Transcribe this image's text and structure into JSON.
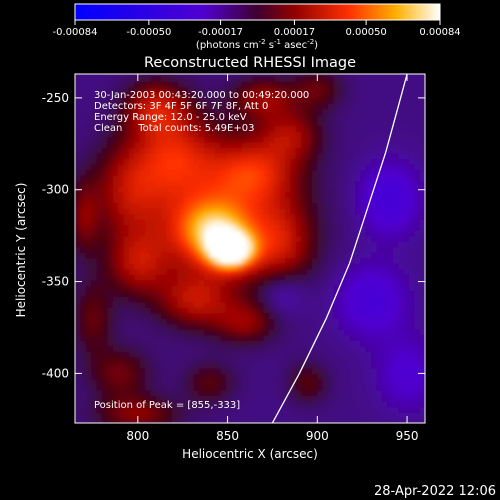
{
  "chart_data": {
    "type": "heatmap",
    "title": "Reconstructed RHESSI Image",
    "xlabel": "Heliocentric X (arcsec)",
    "ylabel": "Heliocentric Y (arcsec)",
    "xlim": [
      765,
      960
    ],
    "ylim": [
      -427,
      -237
    ],
    "x_ticks": [
      "800",
      "850",
      "900",
      "950"
    ],
    "x_tick_values": [
      800,
      850,
      900,
      950
    ],
    "y_ticks": [
      "-250",
      "-300",
      "-350",
      "-400"
    ],
    "y_tick_values": [
      -250,
      -300,
      -350,
      -400
    ],
    "colorbar": {
      "ticks": [
        "-0.00084",
        "-0.00050",
        "-0.00017",
        "0.00017",
        "0.00050",
        "0.00084"
      ],
      "tick_values": [
        -0.00084,
        -0.0005,
        -0.00017,
        0.00017,
        0.0005,
        0.00084
      ],
      "label": "(photons cm-2 s-1 asec-2)",
      "range": [
        -0.00084,
        0.00084
      ]
    },
    "annotations": {
      "line1": "30-Jan-2003 00:43:20.000 to 00:49:20.000",
      "line2": "Detectors: 3F 4F 5F 6F 7F 8F, Att 0",
      "line3": "Energy Range: 12.0 - 25.0 keV",
      "line4": "Clean     Total counts: 5.49E+03",
      "peak": "Position of Peak = [855,-333]"
    },
    "peak": [
      855,
      -333
    ],
    "limb_curve": [
      [
        875,
        -427
      ],
      [
        890,
        -400
      ],
      [
        905,
        -370
      ],
      [
        918,
        -340
      ],
      [
        928,
        -310
      ],
      [
        938,
        -280
      ],
      [
        945,
        -255
      ],
      [
        950,
        -237
      ]
    ],
    "blobs": [
      {
        "x": 852,
        "y": -333,
        "sx": 9,
        "sy": 7,
        "v": 0.00084
      },
      {
        "x": 842,
        "y": -322,
        "sx": 14,
        "sy": 11,
        "v": 0.0005
      },
      {
        "x": 845,
        "y": -315,
        "sx": 30,
        "sy": 28,
        "v": 0.0004
      },
      {
        "x": 820,
        "y": -280,
        "sx": 16,
        "sy": 16,
        "v": 0.00035
      },
      {
        "x": 795,
        "y": -300,
        "sx": 14,
        "sy": 18,
        "v": 0.0003
      },
      {
        "x": 810,
        "y": -255,
        "sx": 12,
        "sy": 10,
        "v": 0.00035
      },
      {
        "x": 865,
        "y": -290,
        "sx": 16,
        "sy": 12,
        "v": 0.00033
      },
      {
        "x": 885,
        "y": -270,
        "sx": 12,
        "sy": 10,
        "v": 0.00028
      },
      {
        "x": 880,
        "y": -330,
        "sx": 12,
        "sy": 16,
        "v": 0.00028
      },
      {
        "x": 800,
        "y": -340,
        "sx": 12,
        "sy": 12,
        "v": 0.0003
      },
      {
        "x": 832,
        "y": -360,
        "sx": 14,
        "sy": 10,
        "v": 0.0003
      },
      {
        "x": 860,
        "y": -372,
        "sx": 12,
        "sy": 8,
        "v": 0.00025
      },
      {
        "x": 790,
        "y": -400,
        "sx": 12,
        "sy": 10,
        "v": 0.00022
      },
      {
        "x": 800,
        "y": -422,
        "sx": 16,
        "sy": 7,
        "v": 0.00026
      },
      {
        "x": 775,
        "y": -370,
        "sx": 8,
        "sy": 14,
        "v": 0.0002
      },
      {
        "x": 770,
        "y": -315,
        "sx": 6,
        "sy": 14,
        "v": 0.00022
      },
      {
        "x": 840,
        "y": -405,
        "sx": 10,
        "sy": 8,
        "v": 0.00018
      },
      {
        "x": 900,
        "y": -245,
        "sx": 10,
        "sy": 8,
        "v": 0.0002
      },
      {
        "x": 895,
        "y": -405,
        "sx": 8,
        "sy": 8,
        "v": 0.00018
      },
      {
        "x": 870,
        "y": -250,
        "sx": 12,
        "sy": 8,
        "v": 0.00028
      },
      {
        "x": 940,
        "y": -305,
        "sx": 12,
        "sy": 14,
        "v": -0.00022
      },
      {
        "x": 930,
        "y": -360,
        "sx": 14,
        "sy": 14,
        "v": -0.0002
      },
      {
        "x": 880,
        "y": -355,
        "sx": 10,
        "sy": 10,
        "v": -0.00018
      },
      {
        "x": 950,
        "y": -400,
        "sx": 12,
        "sy": 14,
        "v": -0.00015
      }
    ]
  },
  "footer": {
    "date": "28-Apr-2022 12:06"
  }
}
